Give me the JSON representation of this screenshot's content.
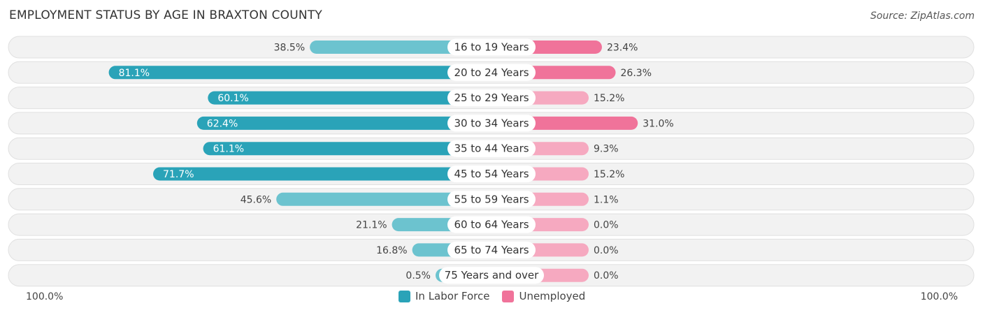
{
  "header": {
    "title": "EMPLOYMENT STATUS BY AGE IN BRAXTON COUNTY",
    "source": "Source: ZipAtlas.com"
  },
  "colors": {
    "labor_force": "#2aa3b8",
    "labor_force_light": "#6cc3cf",
    "unemployed": "#f0739a",
    "unemployed_light": "#f6a9c0",
    "row_bg": "#f2f2f2",
    "row_border": "#e0e0e0"
  },
  "chart_data": {
    "type": "bar",
    "orientation": "horizontal-diverging",
    "title": "EMPLOYMENT STATUS BY AGE IN BRAXTON COUNTY",
    "categories": [
      "16 to 19 Years",
      "20 to 24 Years",
      "25 to 29 Years",
      "30 to 34 Years",
      "35 to 44 Years",
      "45 to 54 Years",
      "55 to 59 Years",
      "60 to 64 Years",
      "65 to 74 Years",
      "75 Years and over"
    ],
    "series": [
      {
        "name": "In Labor Force",
        "values": [
          38.5,
          81.1,
          60.1,
          62.4,
          61.1,
          71.7,
          45.6,
          21.1,
          16.8,
          0.5
        ],
        "labels": [
          "38.5%",
          "81.1%",
          "60.1%",
          "62.4%",
          "61.1%",
          "71.7%",
          "45.6%",
          "21.1%",
          "16.8%",
          "0.5%"
        ]
      },
      {
        "name": "Unemployed",
        "values": [
          23.4,
          26.3,
          15.2,
          31.0,
          9.3,
          15.2,
          1.1,
          0.0,
          0.0,
          0.0
        ],
        "labels": [
          "23.4%",
          "26.3%",
          "15.2%",
          "31.0%",
          "9.3%",
          "15.2%",
          "1.1%",
          "0.0%",
          "0.0%",
          "0.0%"
        ]
      }
    ],
    "xlim": [
      -100,
      100
    ],
    "axis_left_label": "100.0%",
    "axis_right_label": "100.0%",
    "legend_position": "bottom-center"
  }
}
